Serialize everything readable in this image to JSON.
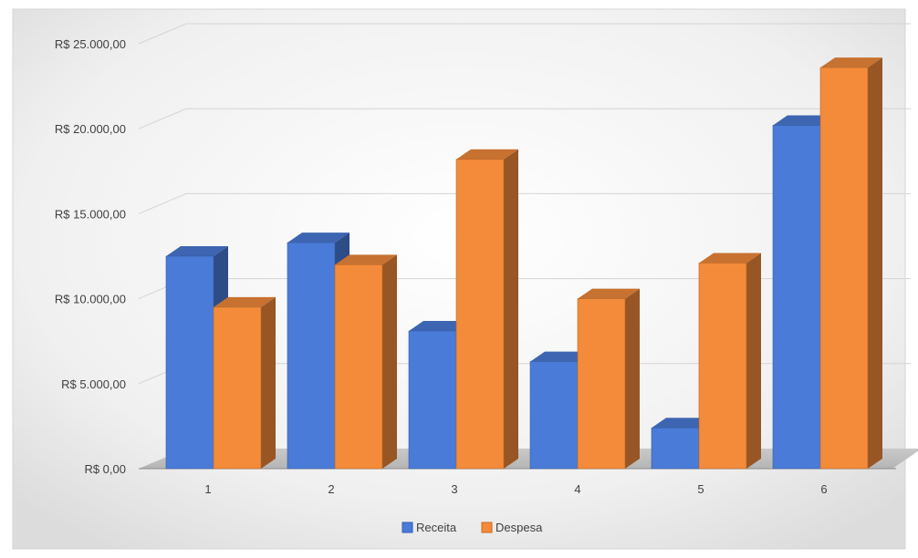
{
  "chart_data": {
    "type": "bar",
    "categories": [
      "1",
      "2",
      "3",
      "4",
      "5",
      "6"
    ],
    "series": [
      {
        "name": "Receita",
        "values": [
          12500,
          13300,
          8100,
          6300,
          2400,
          20200
        ],
        "color": "#4a7bd8"
      },
      {
        "name": "Despesa",
        "values": [
          9500,
          12000,
          18200,
          10000,
          12100,
          23600
        ],
        "color": "#f38b3a"
      }
    ],
    "y_ticks": [
      "R$ 0,00",
      "R$ 5.000,00",
      "R$ 10.000,00",
      "R$ 15.000,00",
      "R$ 20.000,00",
      "R$ 25.000,00"
    ],
    "ylim": [
      0,
      25000
    ],
    "grid": true,
    "legend_position": "bottom",
    "style": "3d-clustered-column"
  }
}
